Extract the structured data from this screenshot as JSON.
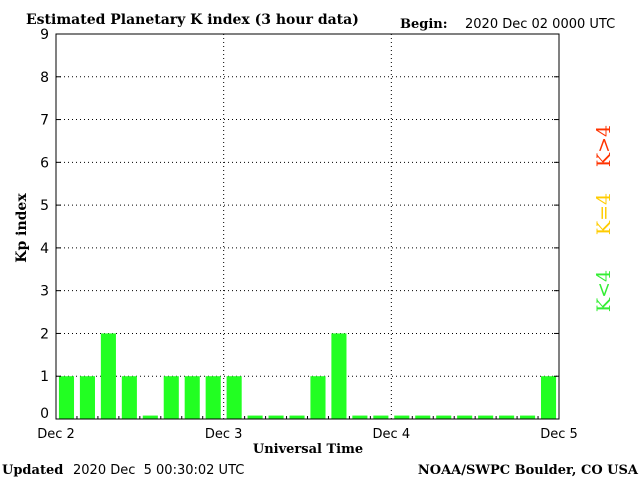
{
  "header": {
    "title": "Estimated Planetary K index (3 hour data)",
    "begin_label": "Begin:",
    "begin_value": "2020 Dec 02 0000 UTC"
  },
  "footer": {
    "updated_label": "Updated",
    "updated_value": "2020 Dec  5 00:30:02 UTC",
    "source": "NOAA/SWPC Boulder, CO USA"
  },
  "legend": {
    "high": "K>4",
    "mid": "K=4",
    "low": "K<4",
    "colors": {
      "high": "#ff3300",
      "mid": "#ffcc00",
      "low": "#33ee33"
    }
  },
  "chart_data": {
    "type": "bar",
    "xlabel": "Universal Time",
    "ylabel": "Kp index",
    "ylim": [
      0,
      9
    ],
    "yticks": [
      "0",
      "1",
      "2",
      "3",
      "4",
      "5",
      "6",
      "7",
      "8",
      "9"
    ],
    "xticks": [
      "Dec 2",
      "Dec 3",
      "Dec 4",
      "Dec 5"
    ],
    "bar_color": "#22ff22",
    "grid": "dotted",
    "values": [
      1,
      1,
      2,
      1,
      0,
      1,
      1,
      1,
      1,
      0,
      0,
      0,
      1,
      2,
      0,
      0,
      0,
      0,
      0,
      0,
      0,
      0,
      0,
      1
    ]
  }
}
